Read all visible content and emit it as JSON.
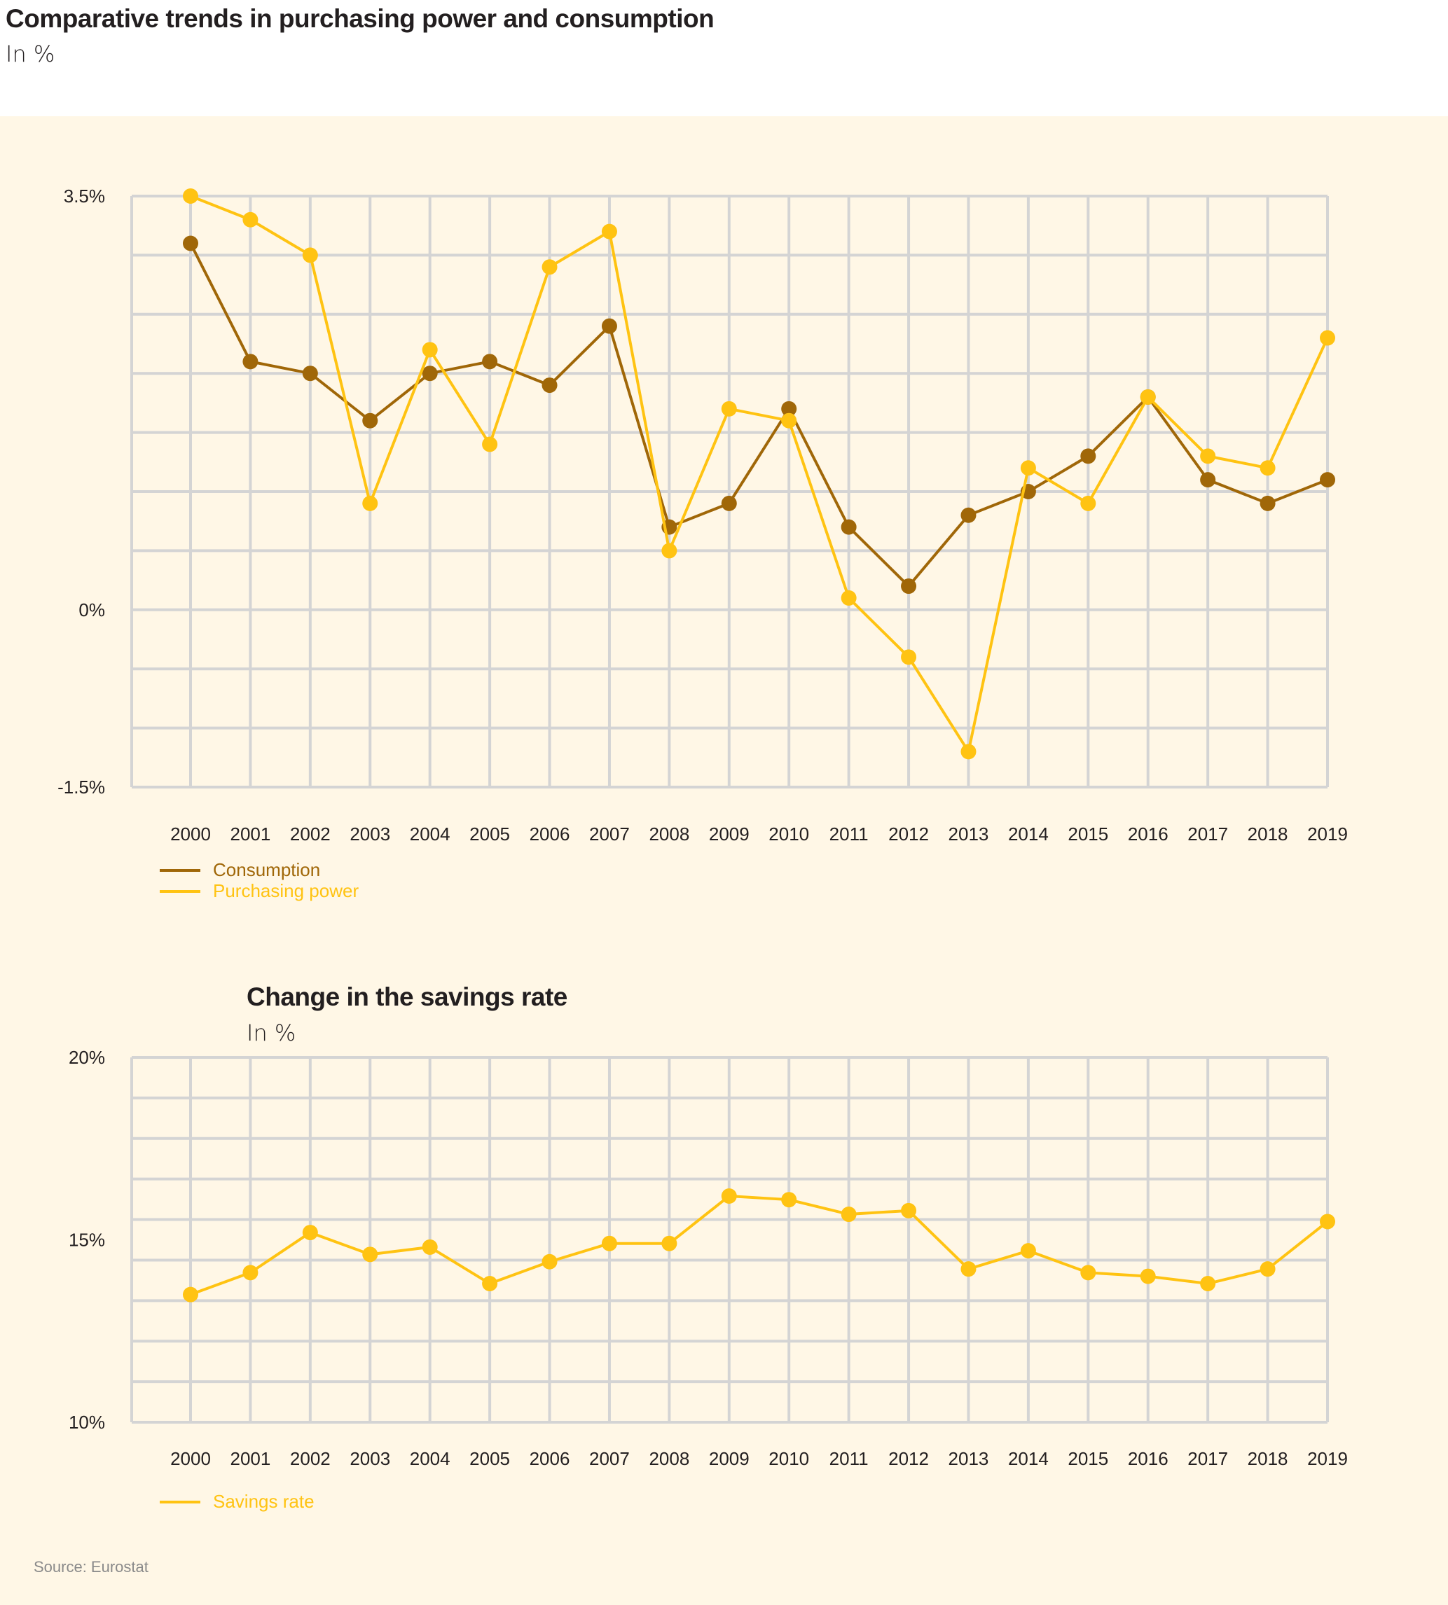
{
  "header": {
    "title": "Comparative trends in purchasing power and consumption",
    "subtitle": "In %"
  },
  "source": "Source: Eurostat",
  "colors": {
    "background": "#FFF7E6",
    "header_background": "#FFFFFF",
    "grid": "#D4D4D4",
    "consumption": "#A06708",
    "purchasing_power": "#FFC312",
    "savings_rate": "#FFC312",
    "text": "#231F20"
  },
  "chart_data": [
    {
      "type": "line",
      "title": "Comparative trends in purchasing power and consumption",
      "subtitle": "In %",
      "xlabel": "",
      "ylabel": "",
      "x": [
        "2000",
        "2001",
        "2002",
        "2003",
        "2004",
        "2005",
        "2006",
        "2007",
        "2008",
        "2009",
        "2010",
        "2011",
        "2012",
        "2013",
        "2014",
        "2015",
        "2016",
        "2017",
        "2018",
        "2019"
      ],
      "ylim": [
        -1.5,
        3.5
      ],
      "y_ticks": [
        3.5,
        0,
        -1.5
      ],
      "y_tick_labels": [
        "3.5%",
        "0%",
        "-1.5%"
      ],
      "grid": true,
      "legend_position": "bottom-left",
      "series": [
        {
          "name": "Consumption",
          "values": [
            3.1,
            2.1,
            2.0,
            1.6,
            2.0,
            2.1,
            1.9,
            2.4,
            0.7,
            0.9,
            1.7,
            0.7,
            0.2,
            0.8,
            1.0,
            1.3,
            1.8,
            1.1,
            0.9,
            1.1
          ]
        },
        {
          "name": "Purchasing power",
          "values": [
            3.5,
            3.3,
            3.0,
            0.9,
            2.2,
            1.4,
            2.9,
            3.2,
            0.5,
            1.7,
            1.6,
            0.1,
            -0.4,
            -1.2,
            1.2,
            0.9,
            1.8,
            1.3,
            1.2,
            2.3
          ]
        }
      ]
    },
    {
      "type": "line",
      "title": "Change in the savings rate",
      "subtitle": "In %",
      "xlabel": "",
      "ylabel": "",
      "x": [
        "2000",
        "2001",
        "2002",
        "2003",
        "2004",
        "2005",
        "2006",
        "2007",
        "2008",
        "2009",
        "2010",
        "2011",
        "2012",
        "2013",
        "2014",
        "2015",
        "2016",
        "2017",
        "2018",
        "2019"
      ],
      "ylim": [
        10,
        20
      ],
      "y_ticks": [
        20,
        15,
        10
      ],
      "y_tick_labels": [
        "20%",
        "15%",
        "10%"
      ],
      "grid": true,
      "legend_position": "bottom-left",
      "series": [
        {
          "name": "Savings rate",
          "values": [
            13.5,
            14.1,
            15.2,
            14.6,
            14.8,
            13.8,
            14.4,
            14.9,
            14.9,
            16.2,
            16.1,
            15.7,
            15.8,
            14.2,
            14.7,
            14.1,
            14.0,
            13.8,
            14.2,
            15.5
          ]
        }
      ]
    }
  ]
}
